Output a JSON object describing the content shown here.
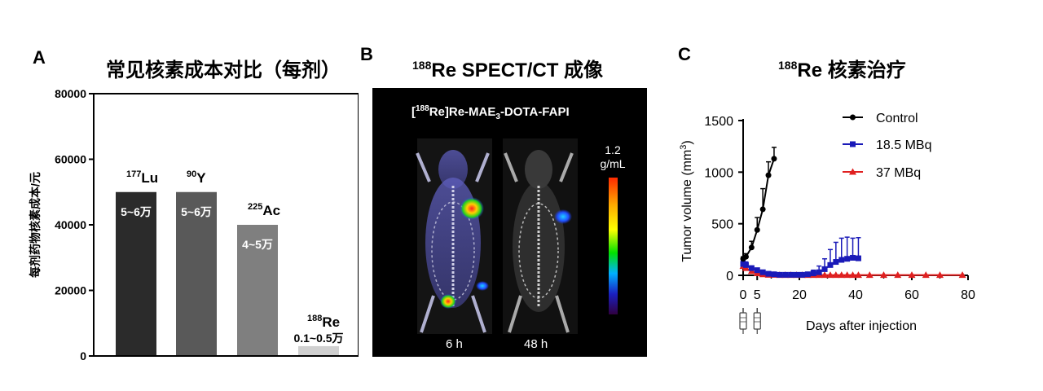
{
  "panels": {
    "a": {
      "letter": "A",
      "title": "常见核素成本对比（每剂）"
    },
    "b": {
      "letter": "B",
      "title_sup": "188",
      "title": "Re SPECT/CT 成像",
      "tracer_pre": "[",
      "tracer_sup": "188",
      "tracer_mid": "Re]Re-MAE",
      "tracer_sub": "3",
      "tracer_post": "-DOTA-FAPI",
      "colorbar_top": "1.2",
      "colorbar_unit": "g/mL",
      "time_left": "6 h",
      "time_right": "48 h"
    },
    "c": {
      "letter": "C",
      "title_sup": "188",
      "title": "Re 核素治疗"
    }
  },
  "colors": {
    "bar1": "#2b2b2b",
    "bar2": "#595959",
    "bar3": "#7f7f7f",
    "bar4": "#d0d0d0",
    "control": "#000000",
    "mbq18": "#1a1ab8",
    "mbq37": "#e02020"
  },
  "chart_data": [
    {
      "type": "bar",
      "title": "常见核素成本对比（每剂）",
      "ylabel": "每剂药物核素成本/元",
      "ylim": [
        0,
        80000
      ],
      "yticks": [
        0,
        20000,
        40000,
        60000,
        80000
      ],
      "categories": [
        {
          "sup": "177",
          "name": "Lu",
          "label": "5~6万"
        },
        {
          "sup": "90",
          "name": "Y",
          "label": "5~6万"
        },
        {
          "sup": "225",
          "name": "Ac",
          "label": "4~5万"
        },
        {
          "sup": "188",
          "name": "Re",
          "label": "0.1~0.5万"
        }
      ],
      "values": [
        50000,
        50000,
        40000,
        3000
      ]
    },
    {
      "type": "line",
      "title": "188Re 核素治疗",
      "xlabel": "Days after injection",
      "ylabel": "Tumor volume  (mm",
      "ylabel_sup": "3",
      "ylabel_close": ")",
      "xlim": [
        0,
        80
      ],
      "ylim": [
        0,
        1500
      ],
      "xticks": [
        0,
        20,
        40,
        60,
        80
      ],
      "xticks_extra": [
        5
      ],
      "yticks": [
        0,
        500,
        1000,
        1500
      ],
      "legend_position": "top-right",
      "injection_days": [
        0,
        5
      ],
      "series": [
        {
          "name": "Control",
          "marker": "circle",
          "x": [
            0,
            1,
            3,
            5,
            7,
            9,
            11
          ],
          "y": [
            160,
            180,
            270,
            440,
            640,
            970,
            1130
          ],
          "err": [
            20,
            30,
            60,
            120,
            200,
            130,
            110
          ]
        },
        {
          "name": "18.5 MBq",
          "marker": "square",
          "x": [
            0,
            1,
            3,
            5,
            7,
            9,
            11,
            13,
            15,
            17,
            19,
            21,
            23,
            25,
            27,
            29,
            31,
            33,
            35,
            37,
            39,
            41
          ],
          "y": [
            110,
            100,
            70,
            50,
            30,
            15,
            10,
            5,
            5,
            5,
            5,
            5,
            10,
            20,
            30,
            60,
            100,
            130,
            150,
            160,
            170,
            165
          ],
          "err": [
            30,
            30,
            20,
            15,
            10,
            5,
            5,
            5,
            5,
            5,
            5,
            5,
            10,
            30,
            60,
            100,
            150,
            190,
            210,
            210,
            190,
            200
          ]
        },
        {
          "name": "37 MBq",
          "marker": "triangle",
          "x": [
            0,
            1,
            3,
            5,
            7,
            9,
            11,
            13,
            15,
            17,
            19,
            21,
            23,
            25,
            27,
            29,
            31,
            33,
            35,
            37,
            39,
            41,
            45,
            50,
            55,
            60,
            65,
            70,
            78
          ],
          "y": [
            90,
            70,
            40,
            20,
            10,
            5,
            5,
            3,
            3,
            3,
            3,
            3,
            3,
            3,
            3,
            3,
            3,
            3,
            3,
            3,
            3,
            3,
            3,
            3,
            3,
            3,
            3,
            3,
            3
          ],
          "err": [
            20,
            15,
            10,
            5,
            5,
            3,
            3,
            2,
            2,
            2,
            2,
            2,
            2,
            2,
            2,
            2,
            2,
            2,
            2,
            2,
            2,
            2,
            2,
            2,
            2,
            2,
            2,
            2,
            2
          ]
        }
      ]
    }
  ]
}
